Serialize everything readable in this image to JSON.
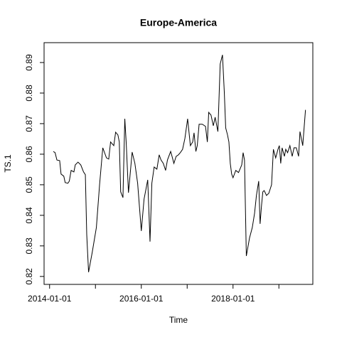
{
  "chart_data": {
    "type": "line",
    "title": "Europe-America",
    "x_label": "Time",
    "y_label": "TS.1",
    "x": [
      2014.08,
      2014.12,
      2014.16,
      2014.22,
      2014.25,
      2014.31,
      2014.34,
      2014.4,
      2014.43,
      2014.47,
      2014.53,
      2014.56,
      2014.62,
      2014.68,
      2014.74,
      2014.78,
      2014.81,
      2014.85,
      2014.93,
      2015.02,
      2015.09,
      2015.16,
      2015.24,
      2015.29,
      2015.33,
      2015.4,
      2015.44,
      2015.49,
      2015.52,
      2015.55,
      2015.6,
      2015.64,
      2015.67,
      2015.72,
      2015.75,
      2015.8,
      2015.86,
      2015.92,
      2016.0,
      2016.06,
      2016.14,
      2016.19,
      2016.23,
      2016.28,
      2016.34,
      2016.39,
      2016.43,
      2016.48,
      2016.53,
      2016.57,
      2016.64,
      2016.67,
      2016.71,
      2016.76,
      2016.81,
      2016.85,
      2016.9,
      2016.95,
      2017.01,
      2017.07,
      2017.12,
      2017.15,
      2017.19,
      2017.22,
      2017.26,
      2017.33,
      2017.4,
      2017.44,
      2017.47,
      2017.52,
      2017.57,
      2017.61,
      2017.67,
      2017.72,
      2017.77,
      2017.81,
      2017.84,
      2017.88,
      2017.91,
      2017.94,
      2017.97,
      2018.0,
      2018.06,
      2018.12,
      2018.19,
      2018.22,
      2018.25,
      2018.29,
      2018.36,
      2018.42,
      2018.47,
      2018.51,
      2018.56,
      2018.59,
      2018.62,
      2018.65,
      2018.68,
      2018.73,
      2018.78,
      2018.84,
      2018.88,
      2018.93,
      2018.98,
      2019.01,
      2019.04,
      2019.07,
      2019.12,
      2019.15,
      2019.19,
      2019.24,
      2019.29,
      2019.33,
      2019.38,
      2019.43,
      2019.46,
      2019.52,
      2019.58
    ],
    "series": [
      {
        "color": "#000000",
        "values": [
          0.8609,
          0.8605,
          0.8581,
          0.8579,
          0.8535,
          0.8528,
          0.8507,
          0.8505,
          0.8512,
          0.8547,
          0.8542,
          0.8565,
          0.8574,
          0.8565,
          0.8542,
          0.8533,
          0.8337,
          0.8214,
          0.8279,
          0.836,
          0.85,
          0.8621,
          0.8588,
          0.8584,
          0.864,
          0.8628,
          0.8672,
          0.8663,
          0.864,
          0.8477,
          0.8458,
          0.8716,
          0.864,
          0.8474,
          0.8523,
          0.8607,
          0.857,
          0.8505,
          0.8349,
          0.8453,
          0.8516,
          0.8314,
          0.8505,
          0.8558,
          0.8551,
          0.8598,
          0.8581,
          0.857,
          0.8547,
          0.8581,
          0.8609,
          0.8593,
          0.857,
          0.8593,
          0.8598,
          0.8605,
          0.8616,
          0.8651,
          0.8716,
          0.8628,
          0.864,
          0.867,
          0.8609,
          0.8628,
          0.8698,
          0.8698,
          0.8691,
          0.864,
          0.8737,
          0.8728,
          0.8693,
          0.8721,
          0.8674,
          0.8895,
          0.8925,
          0.8802,
          0.8686,
          0.8663,
          0.864,
          0.857,
          0.8535,
          0.8523,
          0.8547,
          0.854,
          0.8565,
          0.8605,
          0.8581,
          0.8267,
          0.8326,
          0.836,
          0.8407,
          0.8465,
          0.8512,
          0.8372,
          0.843,
          0.8477,
          0.8481,
          0.8465,
          0.8472,
          0.85,
          0.8616,
          0.8588,
          0.8616,
          0.8628,
          0.857,
          0.8621,
          0.8593,
          0.8616,
          0.8605,
          0.8628,
          0.8593,
          0.8621,
          0.8621,
          0.8593,
          0.8674,
          0.8628,
          0.8745
        ]
      }
    ],
    "xlim": [
      2013.88,
      2019.74
    ],
    "ylim": [
      0.8174,
      0.8965
    ],
    "xticks": [
      {
        "value": 2014,
        "label": "2014-01-01"
      },
      {
        "value": 2016,
        "label": "2016-01-01"
      },
      {
        "value": 2018,
        "label": "2018-01-01"
      }
    ],
    "xminor_ticks": [
      2015,
      2017,
      2019
    ],
    "yticks": [
      0.82,
      0.83,
      0.84,
      0.85,
      0.86,
      0.87,
      0.88,
      0.89
    ]
  }
}
